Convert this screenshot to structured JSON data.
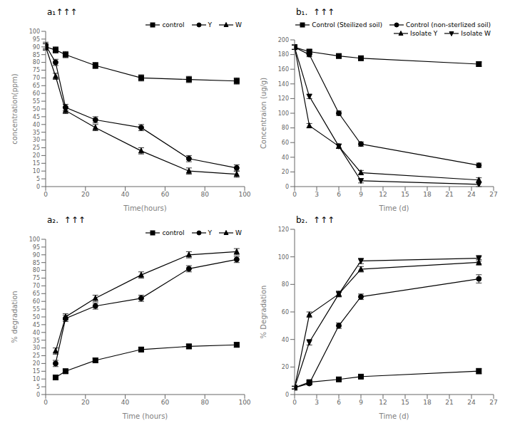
{
  "chart_data": [
    {
      "type": "line",
      "title": "a₁↑↑↑",
      "xlabel": "Time(hours)",
      "ylabel": "concentration(ppm)",
      "xlim": [
        0,
        100
      ],
      "ylim": [
        0,
        100
      ],
      "xticks": [
        0,
        20,
        40,
        60,
        80,
        100
      ],
      "yticks": [
        0,
        5,
        10,
        15,
        20,
        25,
        30,
        35,
        40,
        45,
        50,
        55,
        60,
        65,
        70,
        75,
        80,
        85,
        90,
        95,
        100
      ],
      "legend": "upper right",
      "series": [
        {
          "name": "control",
          "marker": "square",
          "color": "black",
          "x": [
            0,
            5,
            10,
            25,
            48,
            72,
            96
          ],
          "values": [
            90,
            88,
            85,
            78,
            70,
            69,
            68
          ],
          "yerr": [
            2,
            2,
            2,
            2,
            2,
            2,
            2
          ]
        },
        {
          "name": "Y",
          "marker": "circle",
          "color": "black",
          "x": [
            0,
            5,
            10,
            25,
            48,
            72,
            96
          ],
          "values": [
            91,
            80,
            51,
            43,
            38,
            18,
            12
          ],
          "yerr": [
            2,
            2,
            2,
            2,
            2,
            2,
            2
          ]
        },
        {
          "name": "W",
          "marker": "triangle-up",
          "color": "black",
          "x": [
            0,
            5,
            10,
            25,
            48,
            72,
            96
          ],
          "values": [
            90,
            71,
            49,
            38,
            23,
            10,
            8
          ],
          "yerr": [
            2,
            2,
            2,
            2,
            2,
            2,
            2
          ]
        }
      ]
    },
    {
      "type": "line",
      "title": "b₁.  ↑↑↑",
      "xlabel": "Time (d)",
      "ylabel": "Concentraion (ug/g)",
      "xlim": [
        0,
        27
      ],
      "ylim": [
        0,
        200
      ],
      "xticks": [
        0,
        3,
        6,
        9,
        12,
        15,
        18,
        21,
        24,
        27
      ],
      "yticks": [
        0,
        20,
        40,
        60,
        80,
        100,
        120,
        140,
        160,
        180,
        200
      ],
      "legend": "upper right",
      "series": [
        {
          "name": "Control (Steilized soil)",
          "marker": "square",
          "color": "black",
          "x": [
            0,
            2,
            6,
            9,
            25
          ],
          "values": [
            190,
            184,
            178,
            175,
            167
          ],
          "yerr": [
            3,
            3,
            3,
            3,
            3
          ]
        },
        {
          "name": "Control (non-sterlized soil)",
          "marker": "circle",
          "color": "black",
          "x": [
            0,
            2,
            6,
            9,
            25
          ],
          "values": [
            190,
            180,
            100,
            58,
            29
          ],
          "yerr": [
            3,
            3,
            3,
            3,
            3
          ]
        },
        {
          "name": "Isolate Y",
          "marker": "triangle-up",
          "color": "black",
          "x": [
            0,
            2,
            6,
            9,
            25
          ],
          "values": [
            190,
            83,
            55,
            19,
            9
          ],
          "yerr": [
            3,
            3,
            3,
            3,
            3
          ]
        },
        {
          "name": "Isolate W",
          "marker": "triangle-down",
          "color": "black",
          "x": [
            0,
            2,
            6,
            9,
            25
          ],
          "values": [
            190,
            123,
            55,
            8,
            3
          ],
          "yerr": [
            3,
            3,
            3,
            3,
            3
          ]
        }
      ]
    },
    {
      "type": "line",
      "title": "a₂.  ↑↑↑",
      "xlabel": "Time (hours)",
      "ylabel": "% degradation",
      "xlim": [
        0,
        100
      ],
      "ylim": [
        0,
        100
      ],
      "xticks": [
        0,
        20,
        40,
        60,
        80,
        100
      ],
      "yticks": [
        0,
        5,
        10,
        15,
        20,
        25,
        30,
        35,
        40,
        45,
        50,
        55,
        60,
        65,
        70,
        75,
        80,
        85,
        90,
        95,
        100
      ],
      "legend": "upper right",
      "series": [
        {
          "name": "control",
          "marker": "square",
          "color": "black",
          "x": [
            5,
            10,
            25,
            48,
            72,
            96
          ],
          "values": [
            11,
            15,
            22,
            29,
            31,
            32
          ],
          "yerr": [
            1.5,
            1.5,
            1.5,
            1.5,
            1.5,
            1.5
          ]
        },
        {
          "name": "Y",
          "marker": "circle",
          "color": "black",
          "x": [
            5,
            10,
            25,
            48,
            72,
            96
          ],
          "values": [
            20,
            49,
            57,
            62,
            81,
            87
          ],
          "yerr": [
            2,
            2,
            2,
            2,
            2,
            2
          ]
        },
        {
          "name": "W",
          "marker": "triangle-up",
          "color": "black",
          "x": [
            5,
            10,
            25,
            48,
            72,
            96
          ],
          "values": [
            28,
            50,
            62,
            77,
            90,
            92
          ],
          "yerr": [
            2,
            2,
            2,
            2,
            2,
            2
          ]
        }
      ]
    },
    {
      "type": "line",
      "title": "b₂.  ↑↑↑",
      "xlabel": "Time (d)",
      "ylabel": "% Degradation",
      "xlim": [
        0,
        27
      ],
      "ylim": [
        0,
        120
      ],
      "xticks": [
        0,
        3,
        6,
        9,
        12,
        15,
        18,
        21,
        24,
        27
      ],
      "yticks": [
        0,
        20,
        40,
        60,
        80,
        100,
        120
      ],
      "series": [
        {
          "name": "Control (Steilized soil)",
          "marker": "square",
          "color": "black",
          "x": [
            0,
            2,
            6,
            9,
            25
          ],
          "values": [
            5,
            9,
            11,
            13,
            17
          ],
          "yerr": [
            1,
            1,
            1,
            1,
            2
          ]
        },
        {
          "name": "Control (non-sterlized soil)",
          "marker": "circle",
          "color": "black",
          "x": [
            0,
            2,
            6,
            9,
            25
          ],
          "values": [
            5,
            8,
            50,
            71,
            84
          ],
          "yerr": [
            1,
            1,
            2,
            2,
            3
          ]
        },
        {
          "name": "Isolate Y",
          "marker": "triangle-up",
          "color": "black",
          "x": [
            0,
            2,
            6,
            9,
            25
          ],
          "values": [
            5,
            58,
            73,
            91,
            96
          ],
          "yerr": [
            1,
            2,
            2,
            2,
            2
          ]
        },
        {
          "name": "Isolate W",
          "marker": "triangle-down",
          "color": "black",
          "x": [
            0,
            2,
            6,
            9,
            25
          ],
          "values": [
            5,
            38,
            73,
            97,
            99
          ],
          "yerr": [
            1,
            2,
            2,
            2,
            2
          ]
        }
      ]
    }
  ]
}
